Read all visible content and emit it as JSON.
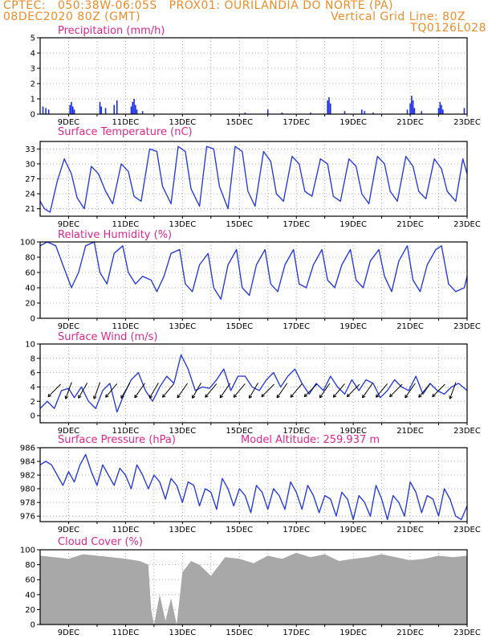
{
  "header": {
    "left_line1": "CPTEC:   050:38W-06:05S   PROX01: OURILANDIA DO NORTE (PA)",
    "left_line2": "08DEC2020 80Z (GMT)",
    "right_line2": "Vertical Grid Line: 80Z",
    "right_line3": "TQ0126L028"
  },
  "x_tick_labels": [
    "9DEC",
    "11DEC",
    "13DEC",
    "15DEC",
    "17DEC",
    "19DEC",
    "21DEC",
    "23DEC"
  ],
  "colors": {
    "line": "#2a3ee0",
    "bar": "#1a2ce8",
    "cloud": "#a8a8a8",
    "title": "#e0288c",
    "header": "#f08c28",
    "arrow": "#000000"
  },
  "chart_data": [
    {
      "type": "bar",
      "title": "Precipitation (mm/h)",
      "ylim": [
        0,
        5
      ],
      "yticks": [
        0,
        1,
        2,
        3,
        4,
        5
      ],
      "x_range_days": [
        8.0,
        23.0
      ],
      "x": [
        8.1,
        8.2,
        8.3,
        9.05,
        9.1,
        9.15,
        9.2,
        10.1,
        10.15,
        10.3,
        10.6,
        10.7,
        11.2,
        11.25,
        11.3,
        11.35,
        11.4,
        11.6,
        15.2,
        16.0,
        16.5,
        17.5,
        18.1,
        18.15,
        18.2,
        18.7,
        19.3,
        19.4,
        19.7,
        20.9,
        21.0,
        21.05,
        21.1,
        21.15,
        21.4,
        22.0,
        22.05,
        22.1,
        22.15,
        22.9
      ],
      "values": [
        0.5,
        0.4,
        0.3,
        0.6,
        0.8,
        0.5,
        0.3,
        0.8,
        0.5,
        0.4,
        0.6,
        0.9,
        0.5,
        0.8,
        1.0,
        0.6,
        0.3,
        0.2,
        0.1,
        0.3,
        0.1,
        0.1,
        0.9,
        1.1,
        0.7,
        0.2,
        0.3,
        0.2,
        0.1,
        0.3,
        0.7,
        1.2,
        0.9,
        0.4,
        0.2,
        0.4,
        0.8,
        0.6,
        0.3,
        0.4
      ]
    },
    {
      "type": "line",
      "title": "Surface Temperature (nC)",
      "ylim": [
        19.5,
        34.5
      ],
      "yticks": [
        21,
        24,
        27,
        30,
        33
      ],
      "x": [
        8.0,
        8.15,
        8.35,
        8.6,
        8.85,
        9.1,
        9.3,
        9.55,
        9.8,
        10.05,
        10.3,
        10.55,
        10.85,
        11.1,
        11.3,
        11.55,
        11.85,
        12.1,
        12.3,
        12.6,
        12.85,
        13.1,
        13.3,
        13.6,
        13.85,
        14.1,
        14.3,
        14.6,
        14.85,
        15.1,
        15.3,
        15.55,
        15.85,
        16.1,
        16.3,
        16.55,
        16.85,
        17.1,
        17.3,
        17.55,
        17.85,
        18.1,
        18.3,
        18.55,
        18.85,
        19.1,
        19.3,
        19.55,
        19.85,
        20.1,
        20.3,
        20.55,
        20.85,
        21.1,
        21.3,
        21.55,
        21.85,
        22.1,
        22.3,
        22.6,
        22.85,
        23.0
      ],
      "values": [
        22.5,
        21.0,
        20.3,
        26.5,
        31.0,
        28.0,
        23.2,
        21.0,
        29.5,
        28.0,
        24.5,
        22.0,
        30.0,
        28.5,
        23.5,
        22.5,
        33.0,
        32.5,
        25.5,
        22.0,
        33.5,
        32.5,
        25.0,
        21.5,
        33.5,
        33.0,
        25.5,
        21.0,
        33.5,
        32.5,
        24.5,
        21.5,
        32.5,
        30.5,
        24.0,
        22.5,
        31.5,
        30.0,
        24.5,
        23.5,
        31.0,
        30.0,
        23.5,
        22.5,
        31.0,
        29.5,
        24.0,
        22.0,
        31.5,
        30.0,
        24.5,
        22.5,
        31.5,
        29.5,
        24.5,
        23.0,
        31.0,
        29.0,
        24.5,
        22.5,
        31.0,
        28.0
      ]
    },
    {
      "type": "line",
      "title": "Relative Humidity (%)",
      "ylim": [
        0,
        100
      ],
      "yticks": [
        0,
        20,
        40,
        60,
        80,
        100
      ],
      "x": [
        8.0,
        8.25,
        8.55,
        8.85,
        9.1,
        9.35,
        9.6,
        9.9,
        10.1,
        10.35,
        10.6,
        10.9,
        11.1,
        11.35,
        11.6,
        11.9,
        12.1,
        12.35,
        12.6,
        12.9,
        13.1,
        13.35,
        13.6,
        13.9,
        14.1,
        14.35,
        14.6,
        14.9,
        15.1,
        15.35,
        15.6,
        15.9,
        16.1,
        16.35,
        16.6,
        16.9,
        17.1,
        17.35,
        17.6,
        17.9,
        18.1,
        18.35,
        18.6,
        18.9,
        19.1,
        19.35,
        19.6,
        19.9,
        20.1,
        20.35,
        20.6,
        20.9,
        21.1,
        21.35,
        21.6,
        21.9,
        22.1,
        22.35,
        22.6,
        22.9,
        23.0
      ],
      "values": [
        95,
        100,
        95,
        65,
        40,
        60,
        95,
        100,
        60,
        45,
        85,
        95,
        60,
        45,
        55,
        50,
        35,
        55,
        85,
        90,
        45,
        35,
        70,
        85,
        40,
        25,
        70,
        90,
        40,
        30,
        70,
        90,
        45,
        35,
        70,
        90,
        45,
        40,
        70,
        90,
        50,
        40,
        70,
        90,
        50,
        40,
        75,
        90,
        55,
        35,
        75,
        95,
        50,
        35,
        70,
        90,
        95,
        45,
        35,
        40,
        55
      ],
      "yunit": "%"
    },
    {
      "type": "line",
      "title": "Surface Wind (m/s)",
      "ylim": [
        -1,
        10
      ],
      "yticks": [
        0,
        2,
        4,
        6,
        8,
        10
      ],
      "x": [
        8.0,
        8.25,
        8.5,
        8.75,
        9.0,
        9.2,
        9.45,
        9.7,
        9.95,
        10.2,
        10.45,
        10.7,
        10.95,
        11.2,
        11.45,
        11.7,
        11.95,
        12.2,
        12.45,
        12.7,
        12.95,
        13.2,
        13.45,
        13.7,
        13.95,
        14.2,
        14.45,
        14.7,
        14.95,
        15.2,
        15.45,
        15.7,
        15.95,
        16.2,
        16.45,
        16.7,
        16.95,
        17.2,
        17.45,
        17.7,
        17.95,
        18.2,
        18.45,
        18.7,
        18.95,
        19.2,
        19.45,
        19.7,
        19.95,
        20.2,
        20.45,
        20.7,
        20.95,
        21.2,
        21.45,
        21.7,
        21.95,
        22.2,
        22.45,
        22.7,
        23.0
      ],
      "values": [
        1.0,
        2.0,
        1.0,
        3.5,
        3.8,
        2.5,
        4.0,
        2.0,
        1.0,
        3.5,
        4.5,
        0.5,
        3.0,
        5.0,
        6.0,
        3.5,
        2.0,
        4.0,
        5.5,
        4.5,
        8.5,
        6.5,
        3.5,
        4.0,
        3.8,
        5.0,
        6.5,
        3.5,
        5.5,
        5.5,
        4.0,
        3.5,
        5.0,
        6.0,
        4.0,
        5.5,
        6.5,
        4.5,
        3.0,
        4.5,
        3.5,
        5.5,
        4.0,
        3.0,
        5.0,
        3.5,
        5.0,
        4.5,
        2.5,
        3.5,
        5.0,
        4.0,
        3.5,
        5.5,
        3.0,
        4.5,
        3.5,
        3.0,
        4.0,
        4.5,
        3.5
      ],
      "arrows_x": [
        8.5,
        9.0,
        9.5,
        10.0,
        10.5,
        11.0,
        11.5,
        12.0,
        12.5,
        13.0,
        13.5,
        14.0,
        14.5,
        15.0,
        15.5,
        16.0,
        16.5,
        17.0,
        17.5,
        18.0,
        18.5,
        19.0,
        19.5,
        20.0,
        20.5,
        21.0,
        21.5,
        22.0,
        22.5
      ],
      "arrows_dir_deg": [
        225,
        200,
        210,
        200,
        220,
        210,
        215,
        210,
        220,
        215,
        210,
        220,
        215,
        220,
        210,
        225,
        215,
        220,
        225,
        215,
        220,
        225,
        215,
        220,
        225,
        215,
        220,
        225,
        200
      ]
    },
    {
      "type": "line",
      "title": "Surface Pressure (hPa)",
      "annotation": "Model Altitude: 259.937 m",
      "ylim": [
        975.2,
        986.0
      ],
      "yticks": [
        976,
        978,
        980,
        982,
        984,
        986
      ],
      "x": [
        8.0,
        8.2,
        8.4,
        8.6,
        8.8,
        9.0,
        9.2,
        9.4,
        9.6,
        9.8,
        10.0,
        10.2,
        10.4,
        10.6,
        10.8,
        11.0,
        11.2,
        11.4,
        11.6,
        11.8,
        12.0,
        12.2,
        12.4,
        12.6,
        12.8,
        13.0,
        13.2,
        13.4,
        13.6,
        13.8,
        14.0,
        14.2,
        14.4,
        14.6,
        14.8,
        15.0,
        15.2,
        15.4,
        15.6,
        15.8,
        16.0,
        16.2,
        16.4,
        16.6,
        16.8,
        17.0,
        17.2,
        17.4,
        17.6,
        17.8,
        18.0,
        18.2,
        18.4,
        18.6,
        18.8,
        19.0,
        19.2,
        19.4,
        19.6,
        19.8,
        20.0,
        20.2,
        20.4,
        20.6,
        20.8,
        21.0,
        21.2,
        21.4,
        21.6,
        21.8,
        22.0,
        22.2,
        22.4,
        22.6,
        22.8,
        23.0
      ],
      "values": [
        983.5,
        984.0,
        983.5,
        982.0,
        980.5,
        982.5,
        981.0,
        983.5,
        985.0,
        982.5,
        980.5,
        983.5,
        982.0,
        980.5,
        983.0,
        982.0,
        980.0,
        983.5,
        982.0,
        980.0,
        982.0,
        981.0,
        978.5,
        981.5,
        980.5,
        978.0,
        981.0,
        980.5,
        977.5,
        980.0,
        979.5,
        977.0,
        981.5,
        980.0,
        977.5,
        980.0,
        979.0,
        976.5,
        980.5,
        979.5,
        977.0,
        980.0,
        979.0,
        977.0,
        981.0,
        979.5,
        977.0,
        980.5,
        979.0,
        976.5,
        979.0,
        978.5,
        976.0,
        979.5,
        978.5,
        975.5,
        979.0,
        978.0,
        976.0,
        980.5,
        978.5,
        975.5,
        979.0,
        978.0,
        976.0,
        981.0,
        979.5,
        976.5,
        979.0,
        978.5,
        976.0,
        980.0,
        978.5,
        976.0,
        975.5,
        977.5
      ]
    },
    {
      "type": "area",
      "title": "Cloud Cover (%)",
      "ylim": [
        0,
        100
      ],
      "yticks": [
        0,
        20,
        40,
        60,
        80,
        100
      ],
      "x": [
        8.0,
        8.5,
        9.0,
        9.5,
        10.0,
        10.5,
        11.0,
        11.5,
        11.8,
        11.9,
        12.0,
        12.2,
        12.4,
        12.6,
        12.8,
        13.0,
        13.3,
        13.6,
        14.0,
        14.5,
        15.0,
        15.5,
        16.0,
        16.5,
        17.0,
        17.5,
        18.0,
        18.5,
        19.0,
        19.5,
        20.0,
        20.5,
        21.0,
        21.5,
        22.0,
        22.5,
        23.0
      ],
      "values": [
        92,
        90,
        88,
        94,
        92,
        90,
        88,
        85,
        80,
        20,
        0,
        40,
        5,
        35,
        0,
        70,
        85,
        80,
        65,
        90,
        88,
        82,
        92,
        88,
        96,
        90,
        94,
        85,
        88,
        90,
        94,
        90,
        86,
        88,
        92,
        90,
        92
      ]
    }
  ]
}
